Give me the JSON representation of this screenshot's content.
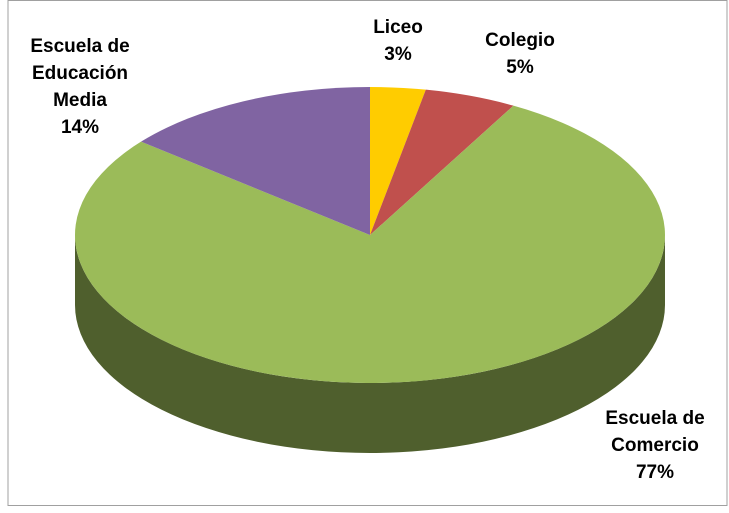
{
  "chart_data": {
    "type": "pie",
    "categories": [
      "Liceo",
      "Colegio",
      "Escuela de Comercio",
      "Escuela de Educación Media"
    ],
    "values": [
      3,
      5,
      77,
      14
    ],
    "value_labels": [
      "3%",
      "5%",
      "77%",
      "14%"
    ],
    "colors": [
      "#ffcc00",
      "#c0504d",
      "#9bbb59",
      "#8064a2"
    ]
  }
}
